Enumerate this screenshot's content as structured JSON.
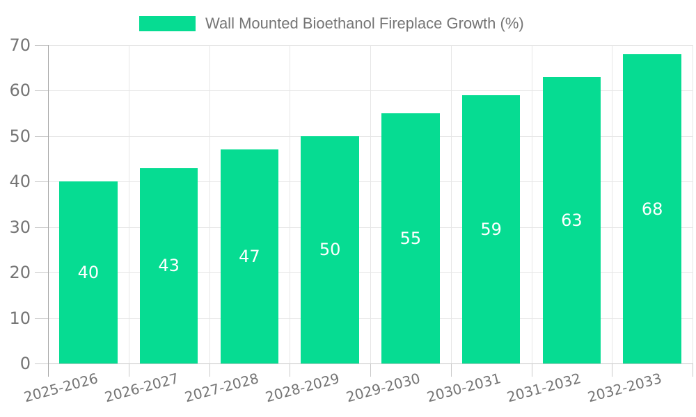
{
  "colors": {
    "bar": "#06dc92",
    "axis_text": "#757575",
    "grid": "#e6e6e6",
    "axis_line_y": "#a6a6a6",
    "axis_line_x": "#c6c6c6",
    "tick": "#c9c9c9",
    "value_label": "#ffffff"
  },
  "chart_data": {
    "type": "bar",
    "title": "Wall Mounted Bioethanol Fireplace Growth (%)",
    "categories": [
      "2025-2026",
      "2026-2027",
      "2027-2028",
      "2028-2029",
      "2029-2030",
      "2030-2031",
      "2031-2032",
      "2032-2033"
    ],
    "values": [
      40,
      43,
      47,
      50,
      55,
      59,
      63,
      68
    ],
    "xlabel": "",
    "ylabel": "",
    "ylim": [
      0,
      70
    ],
    "yticks": [
      0,
      10,
      20,
      30,
      40,
      50,
      60,
      70
    ],
    "grid": true,
    "legend_position": "top",
    "value_labels": "inside-center",
    "x_label_rotation_deg": -15
  }
}
